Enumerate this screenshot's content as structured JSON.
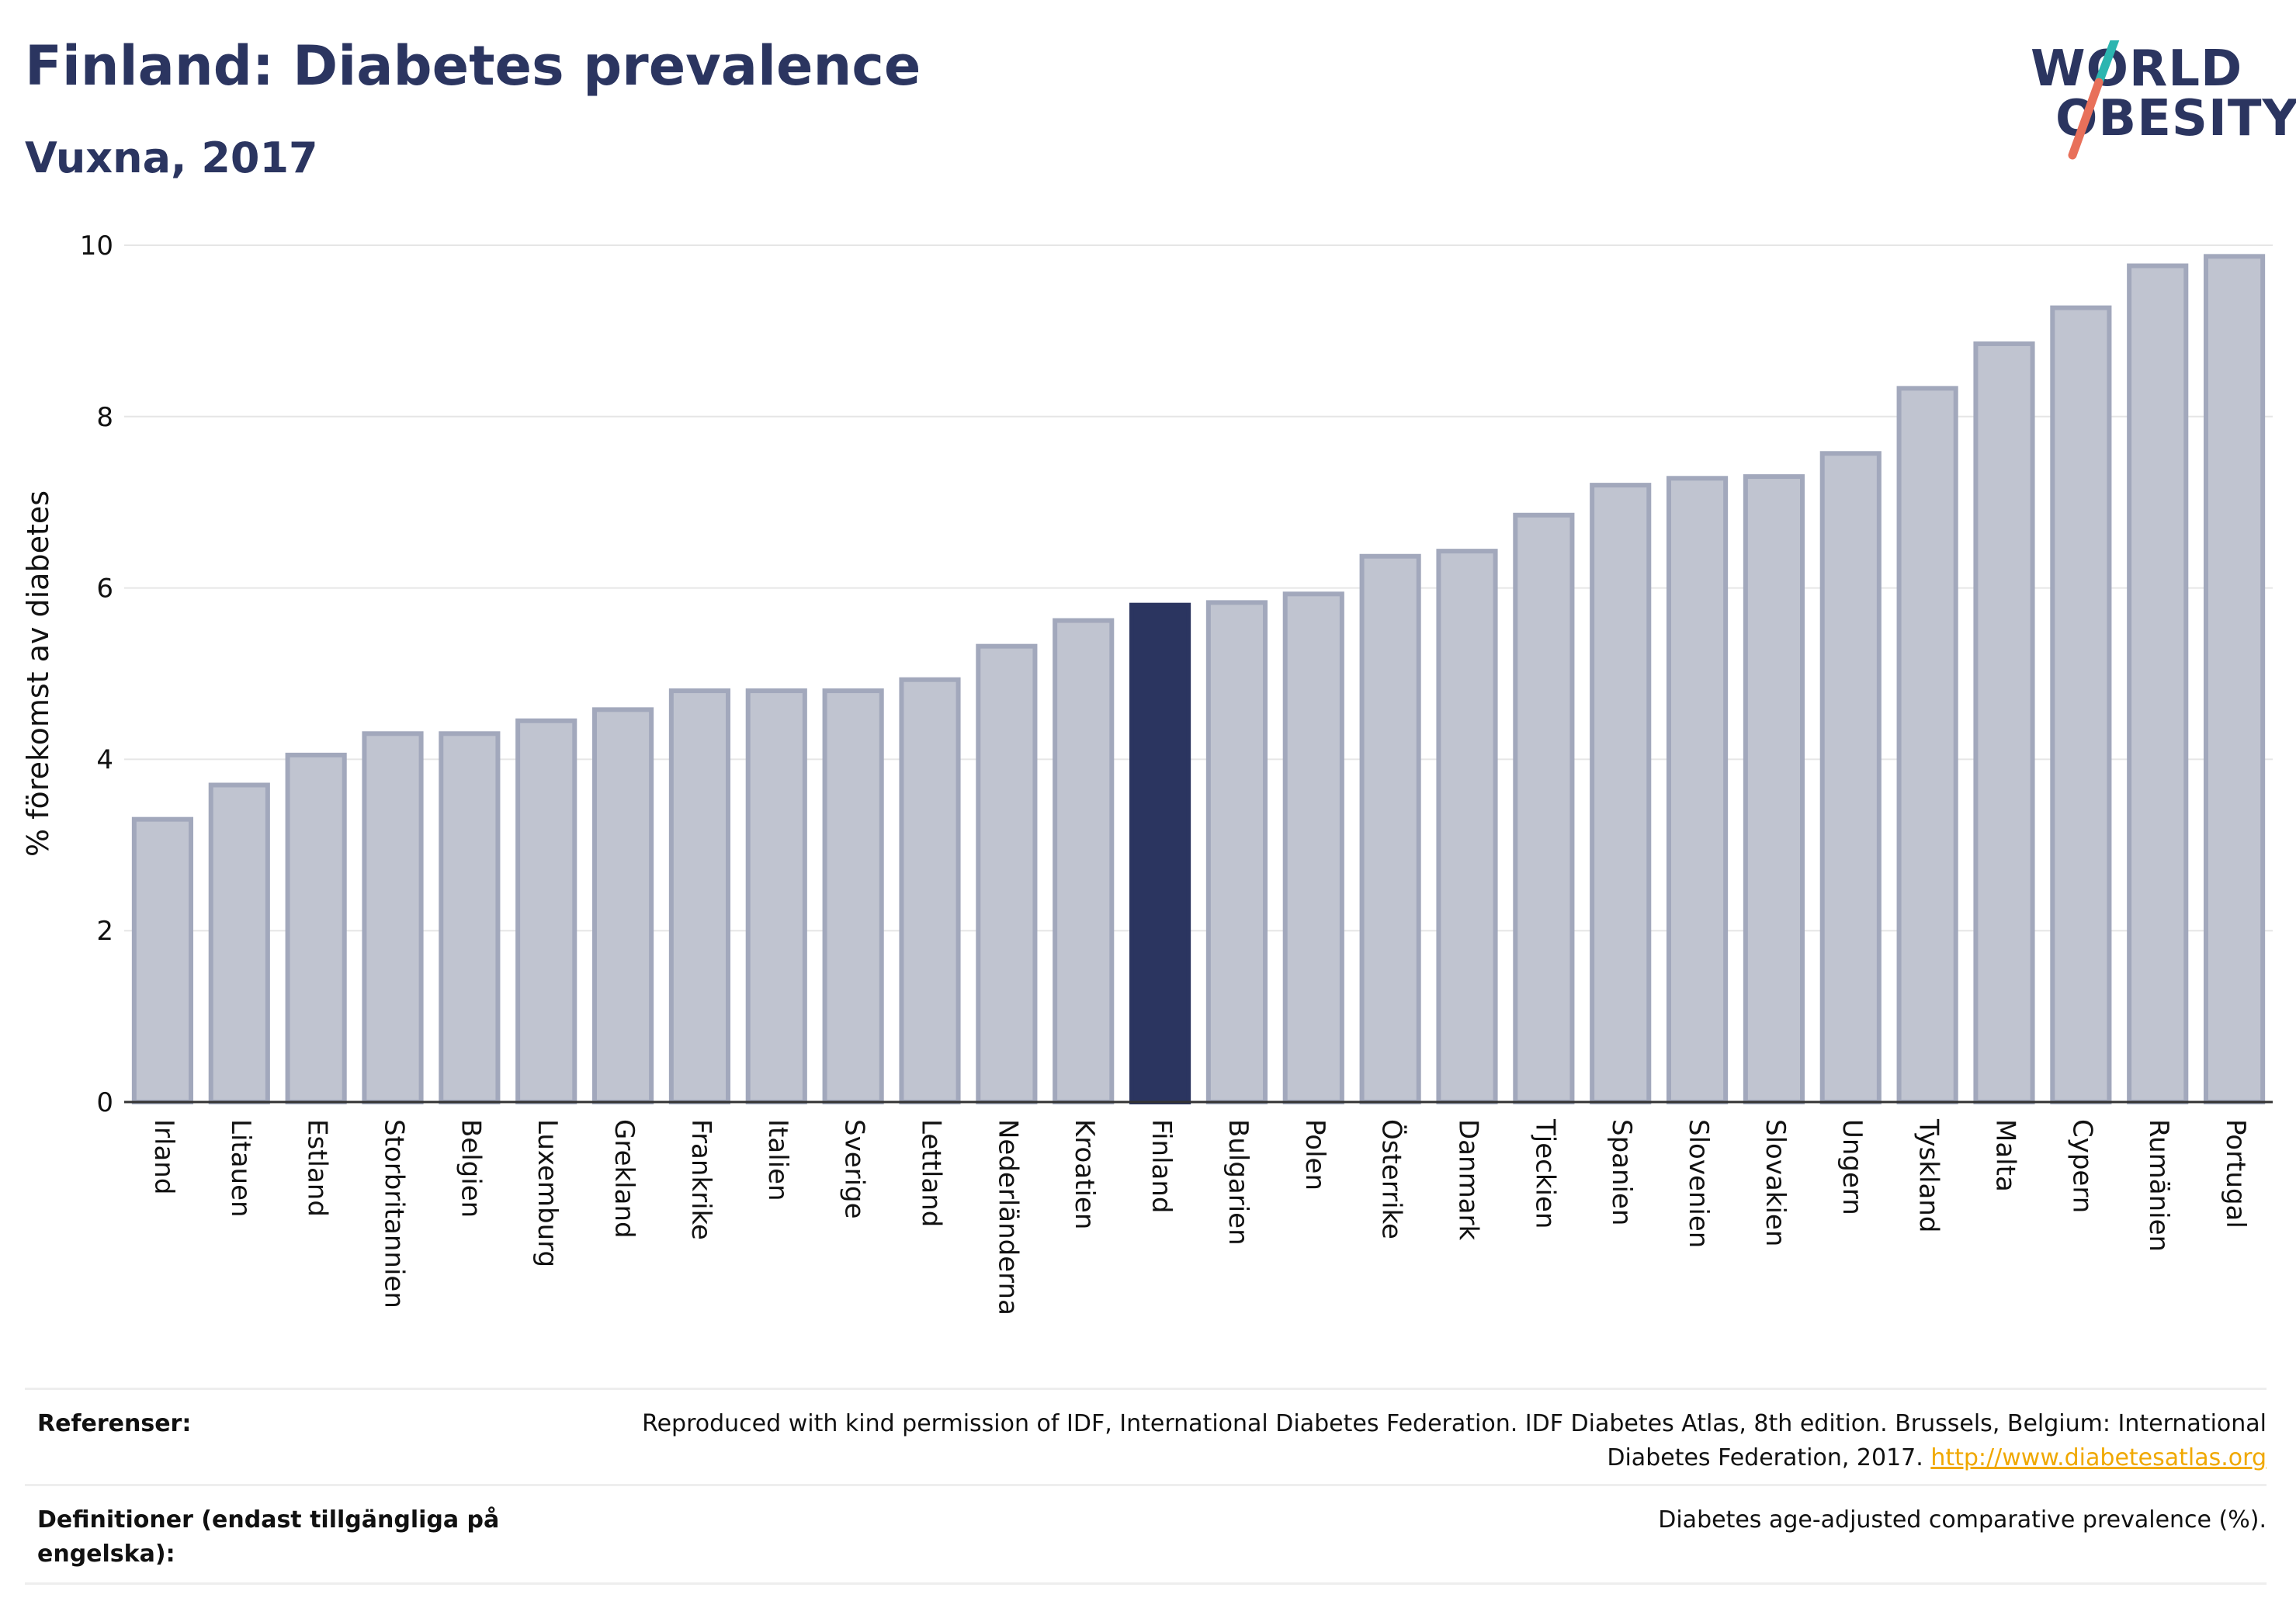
{
  "header": {
    "title": "Finland: Diabetes prevalence",
    "subtitle": "Vuxna, 2017"
  },
  "logo": {
    "line1": "WORLD",
    "line2": "OBESITY",
    "colors": {
      "text": "#2b3560",
      "slash_top": "#2bb5b0",
      "slash_bottom": "#e8705a"
    }
  },
  "chart_data": {
    "type": "bar",
    "ylabel": "% förekomst av diabetes",
    "xlabel": "",
    "ylim": [
      0,
      10
    ],
    "yticks": [
      0,
      2,
      4,
      6,
      8,
      10
    ],
    "grid": true,
    "highlight": "Finland",
    "colors": {
      "bar": "#c0c4d0",
      "bar_stroke": "#a2a8bc",
      "highlight": "#2b3560"
    },
    "categories": [
      "Irland",
      "Litauen",
      "Estland",
      "Storbritannien",
      "Belgien",
      "Luxemburg",
      "Grekland",
      "Frankrike",
      "Italien",
      "Sverige",
      "Lettland",
      "Nederländerna",
      "Kroatien",
      "Finland",
      "Bulgarien",
      "Polen",
      "Österrike",
      "Danmark",
      "Tjeckien",
      "Spanien",
      "Slovenien",
      "Slovakien",
      "Ungern",
      "Tyskland",
      "Malta",
      "Cypern",
      "Rumänien",
      "Portugal"
    ],
    "values": [
      3.3,
      3.7,
      4.05,
      4.3,
      4.3,
      4.45,
      4.58,
      4.8,
      4.8,
      4.8,
      4.93,
      5.32,
      5.62,
      5.8,
      5.83,
      5.93,
      6.37,
      6.43,
      6.85,
      7.2,
      7.28,
      7.3,
      7.57,
      8.33,
      8.85,
      9.27,
      9.76,
      9.87
    ]
  },
  "footer": {
    "references_label": "Referenser:",
    "references_text": "Reproduced with kind permission of IDF, International Diabetes Federation. IDF Diabetes Atlas, 8th edition. Brussels, Belgium: International Diabetes Federation, 2017.",
    "references_link": "http://www.diabetesatlas.org",
    "definitions_label": "Definitioner (endast tillgängliga på engelska):",
    "definitions_text": "Diabetes age-adjusted comparative prevalence (%)."
  }
}
